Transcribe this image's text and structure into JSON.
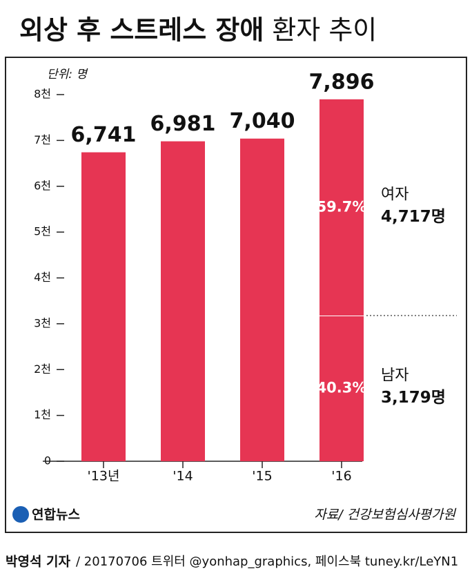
{
  "chart_data": {
    "type": "bar",
    "title": "외상 후 스트레스 장애",
    "title_light": "환자 추이",
    "unit_label": "단위: 명",
    "categories": [
      "'13년",
      "'14",
      "'15",
      "'16"
    ],
    "values": [
      6741,
      6981,
      7040,
      7896
    ],
    "value_labels": [
      "6,741",
      "6,981",
      "7,040",
      "7,896"
    ],
    "color": "#e63553",
    "ylim": [
      0,
      8000
    ],
    "yticks": [
      0,
      {
        "value": 1000,
        "label": "1천"
      },
      {
        "value": 2000,
        "label": "2천"
      },
      {
        "value": 3000,
        "label": "3천"
      },
      {
        "value": 4000,
        "label": "4천"
      },
      {
        "value": 5000,
        "label": "5천"
      },
      {
        "value": 6000,
        "label": "6천"
      },
      {
        "value": 7000,
        "label": "7천"
      },
      {
        "value": 8000,
        "label": "8천"
      }
    ],
    "breakdown": [
      {
        "name": "남자",
        "value": 3179,
        "value_label": "3,179명",
        "share_label": "40.3%"
      },
      {
        "name": "여자",
        "value": 4717,
        "value_label": "4,717명",
        "share_label": "59.7%"
      }
    ],
    "source": "자료/ 건강보험심사평가원",
    "logo": "연합뉴스",
    "byline_author": "박영석 기자",
    "byline_rest": "/ 20170706 트위터 @yonhap_graphics, 페이스북 tuney.kr/LeYN1"
  }
}
